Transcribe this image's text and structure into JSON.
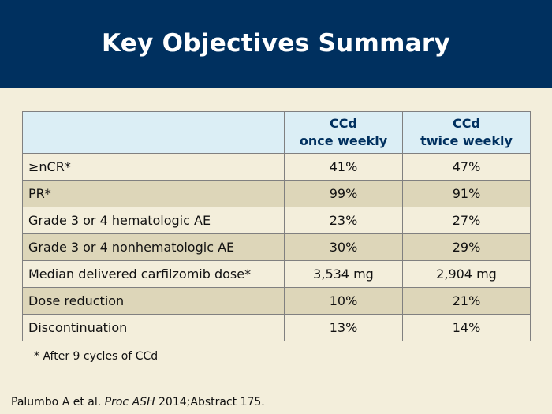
{
  "slide": {
    "title": "Key Objectives Summary"
  },
  "table": {
    "columns": [
      {
        "line1": "CCd",
        "line2": "once weekly"
      },
      {
        "line1": "CCd",
        "line2": "twice weekly"
      }
    ],
    "rows": [
      {
        "label": "≥nCR*",
        "once": "41%",
        "twice": "47%"
      },
      {
        "label": "PR*",
        "once": "99%",
        "twice": "91%"
      },
      {
        "label": "Grade 3 or 4 hematologic AE",
        "once": "23%",
        "twice": "27%"
      },
      {
        "label": "Grade 3 or 4 nonhematologic AE",
        "once": "30%",
        "twice": "29%"
      },
      {
        "label": "Median delivered carfilzomib dose*",
        "once": "3,534 mg",
        "twice": "2,904 mg"
      },
      {
        "label": "Dose reduction",
        "once": "10%",
        "twice": "21%"
      },
      {
        "label": "Discontinuation",
        "once": "13%",
        "twice": "14%"
      }
    ]
  },
  "footnote": "* After 9 cycles of CCd",
  "citation": {
    "authors": "Palumbo A et al.",
    "journal": "Proc ASH",
    "rest": "2014;Abstract 175."
  },
  "colors": {
    "header_bg": "#00305f",
    "page_bg": "#f3eedb",
    "table_header_bg": "#dbeef5",
    "row_alt_bg": "#ddd6b9"
  }
}
